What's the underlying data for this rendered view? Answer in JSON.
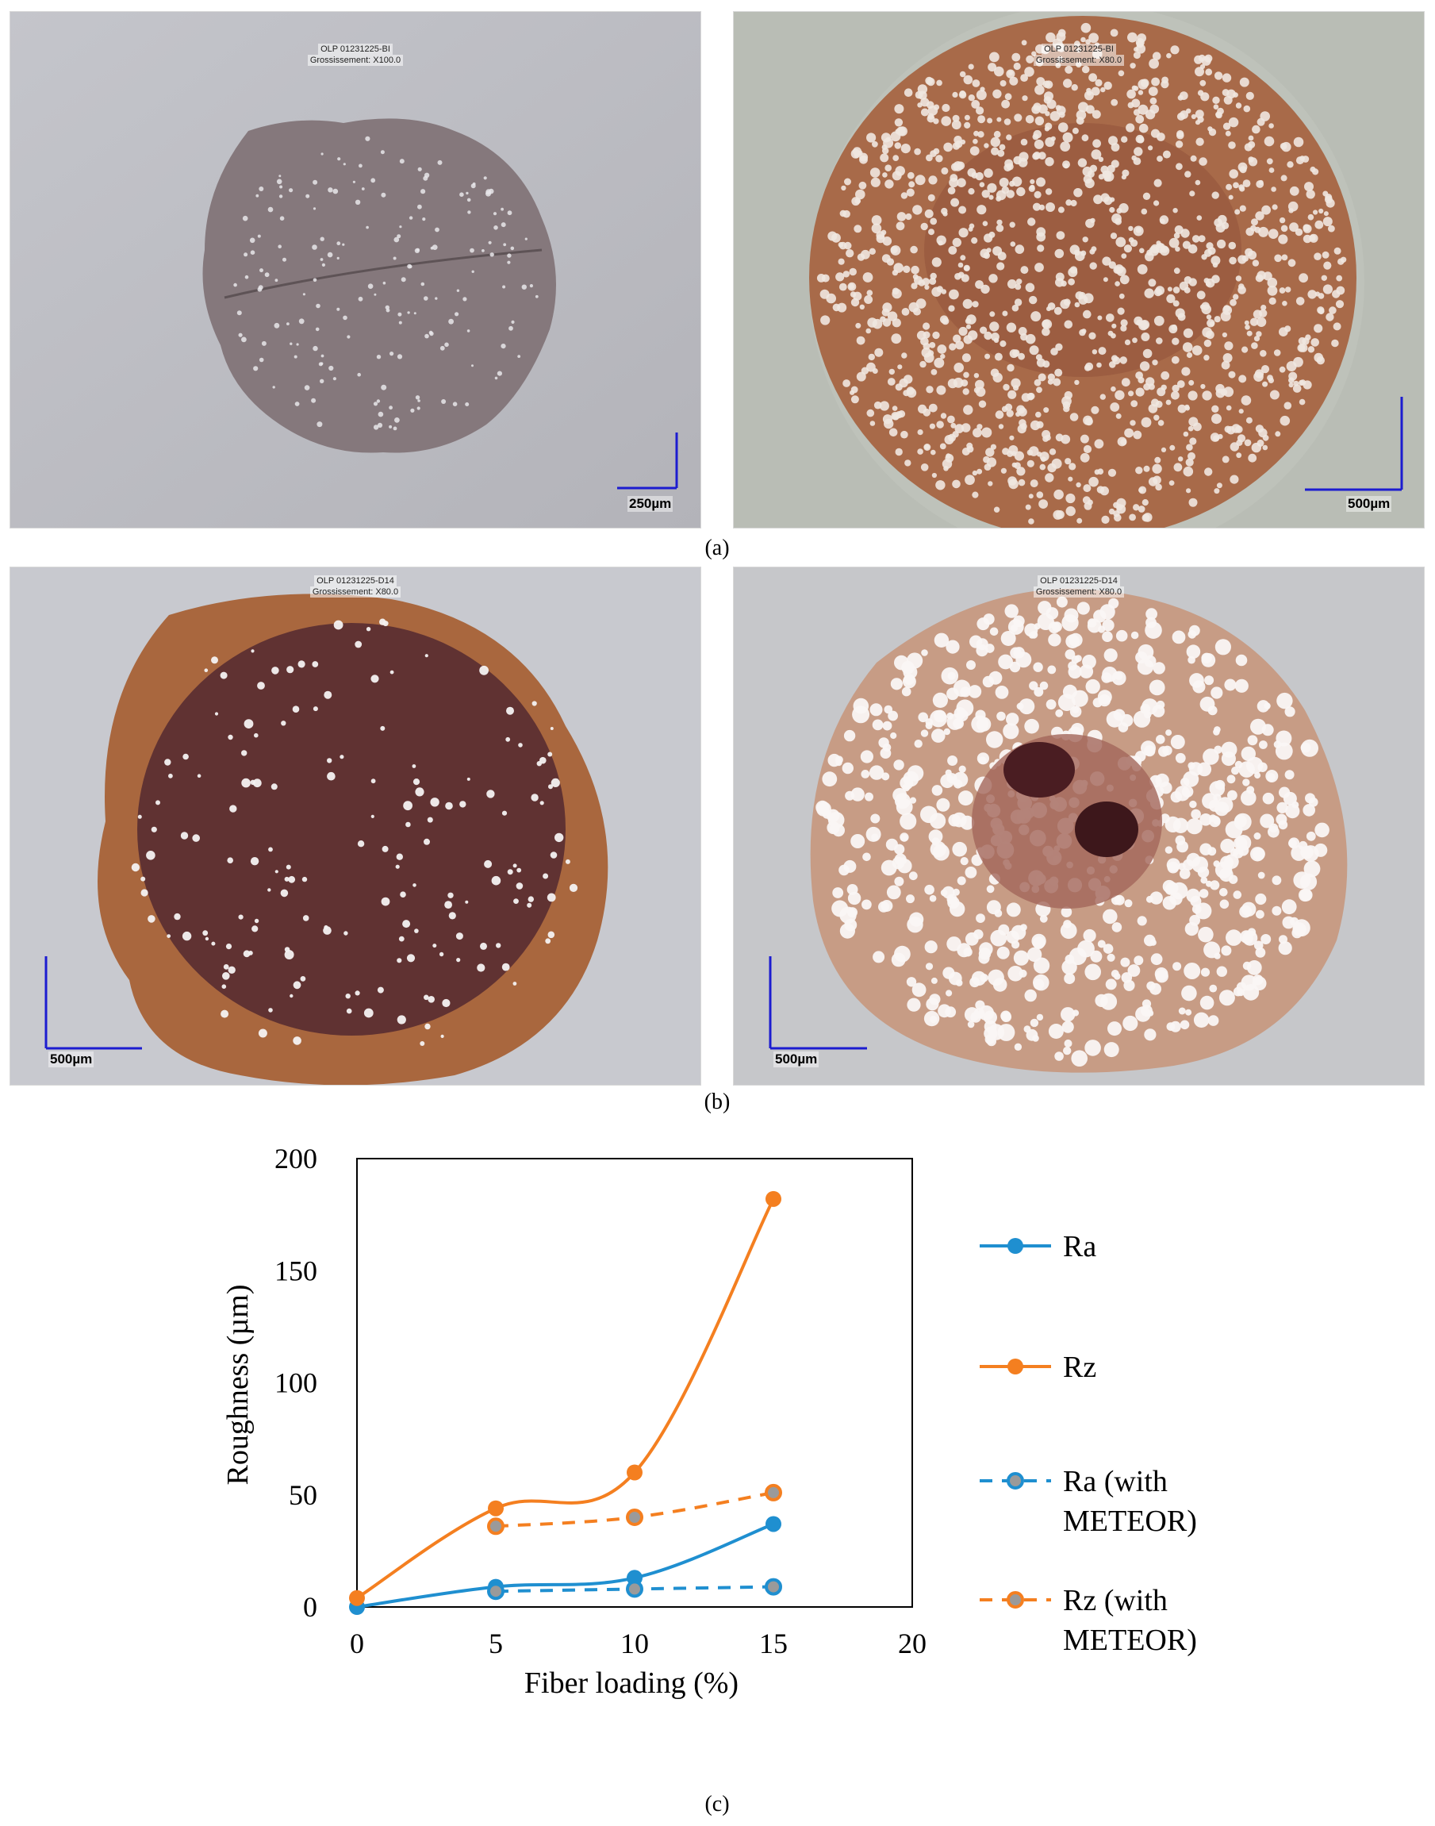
{
  "panels": {
    "a": {
      "label": "(a)",
      "left_image": {
        "caption_line1": "OLP 01231225-BI",
        "caption_line2": "Grossissement: X100.0",
        "scale": "250µm"
      },
      "right_image": {
        "caption_line1": "OLP 01231225-BI",
        "caption_line2": "Grossissement: X80.0",
        "scale": "500µm"
      }
    },
    "b": {
      "label": "(b)",
      "left_image": {
        "caption_line1": "OLP 01231225-D14",
        "caption_line2": "Grossissement: X80.0",
        "scale": "500µm"
      },
      "right_image": {
        "caption_line1": "OLP 01231225-D14",
        "caption_line2": "Grossissement: X80.0",
        "scale": "500µm"
      }
    },
    "c": {
      "label": "(c)"
    }
  },
  "chart_data": {
    "type": "line",
    "xlabel": "Fiber loading (%)",
    "ylabel": "Roughness (µm)",
    "xlim": [
      0,
      20
    ],
    "ylim": [
      0,
      200
    ],
    "xticks": [
      "0",
      "5",
      "10",
      "15",
      "20"
    ],
    "yticks": [
      "0",
      "50",
      "100",
      "150",
      "200"
    ],
    "grid": false,
    "legend_position": "right",
    "series": [
      {
        "name": "Ra",
        "x": [
          0,
          5,
          10,
          15
        ],
        "y": [
          0,
          9,
          13,
          37
        ],
        "color": "#1f8fd0",
        "dashed": false
      },
      {
        "name": "Rz",
        "x": [
          0,
          5,
          10,
          15
        ],
        "y": [
          4,
          44,
          60,
          182
        ],
        "color": "#f47f20",
        "dashed": false
      },
      {
        "name_line1": "Ra (with",
        "name_line2": "METEOR)",
        "x": [
          5,
          10,
          15
        ],
        "y": [
          7,
          8,
          9
        ],
        "color": "#1f8fd0",
        "dashed": true
      },
      {
        "name_line1": "Rz (with",
        "name_line2": "METEOR)",
        "x": [
          5,
          10,
          15
        ],
        "y": [
          36,
          40,
          51
        ],
        "color": "#f47f20",
        "dashed": true
      }
    ]
  }
}
